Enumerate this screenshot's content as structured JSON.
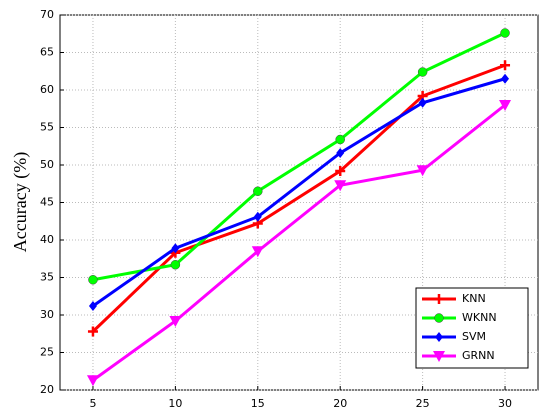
{
  "chart_data": {
    "type": "line",
    "y_label": "Accuracy (%)",
    "x": [
      5,
      10,
      15,
      20,
      25,
      30
    ],
    "series": [
      {
        "name": "KNN",
        "color": "#ff0000",
        "marker": "plus",
        "values": [
          27.8,
          38.3,
          42.2,
          49.2,
          59.2,
          63.3
        ]
      },
      {
        "name": "WKNN",
        "color": "#00ff00",
        "marker": "circle",
        "values": [
          34.7,
          36.7,
          46.5,
          53.4,
          62.4,
          67.6
        ]
      },
      {
        "name": "SVM",
        "color": "#0000ff",
        "marker": "diamond",
        "values": [
          31.2,
          38.9,
          43.1,
          51.6,
          58.3,
          61.5
        ]
      },
      {
        "name": "GRNN",
        "color": "#ff00ff",
        "marker": "triangle-down",
        "values": [
          21.3,
          29.2,
          38.5,
          47.3,
          49.3,
          58.0
        ]
      }
    ],
    "xlim": [
      3,
      32
    ],
    "xticks": [
      5,
      10,
      15,
      20,
      25,
      30
    ],
    "ylim": [
      20,
      70
    ],
    "yticks": [
      20,
      25,
      30,
      35,
      40,
      45,
      50,
      55,
      60,
      65,
      70
    ],
    "grid": true,
    "legend": "lower-right"
  }
}
